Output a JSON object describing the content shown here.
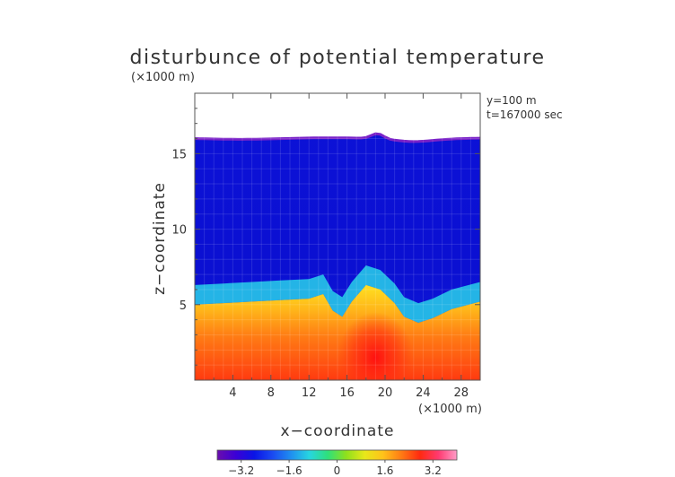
{
  "chart_data": {
    "type": "heatmap",
    "title": "disturbunce of potential temperature",
    "y_unit": "(×1000 m)",
    "x_unit": "(×1000 m)",
    "xlabel": "x−coordinate",
    "ylabel": "z−coordinate",
    "annotations": [
      "y=100 m",
      "t=167000 sec"
    ],
    "x_range": [
      0,
      30
    ],
    "y_range": [
      0,
      19
    ],
    "x_ticks": [
      4,
      8,
      12,
      16,
      20,
      24,
      28
    ],
    "y_ticks": [
      5,
      10,
      15
    ],
    "colorbar": {
      "range": [
        -4,
        4
      ],
      "ticks": [
        -3.2,
        -1.6,
        0,
        1.6,
        3.2
      ],
      "tick_labels": [
        "−3.2",
        "−1.6",
        "0",
        "1.6",
        "3.2"
      ],
      "colors": [
        "#6a0dad",
        "#3b00d6",
        "#0a14e6",
        "#1a4af2",
        "#1f8ff0",
        "#27d6e0",
        "#2fe07a",
        "#8fe01c",
        "#e8e81a",
        "#ffc21a",
        "#ff7a14",
        "#ff2a10",
        "#ff3a70",
        "#ff9cc8"
      ]
    },
    "field_summary": {
      "upper_layer_value": -3.2,
      "lower_layer_value": 3.0,
      "top_boundary_z": 16,
      "interface_z_profile": [
        [
          0,
          5.0
        ],
        [
          3,
          5.1
        ],
        [
          6,
          5.2
        ],
        [
          9,
          5.3
        ],
        [
          12,
          5.4
        ],
        [
          13.5,
          5.7
        ],
        [
          14.5,
          4.6
        ],
        [
          15.5,
          4.2
        ],
        [
          16.5,
          5.2
        ],
        [
          18,
          6.3
        ],
        [
          19.5,
          6.0
        ],
        [
          21,
          5.1
        ],
        [
          22,
          4.2
        ],
        [
          23.5,
          3.8
        ],
        [
          25,
          4.1
        ],
        [
          27,
          4.7
        ],
        [
          30,
          5.2
        ]
      ],
      "warm_core": {
        "x": 19,
        "z": 1.5,
        "value": 3.8
      }
    }
  }
}
